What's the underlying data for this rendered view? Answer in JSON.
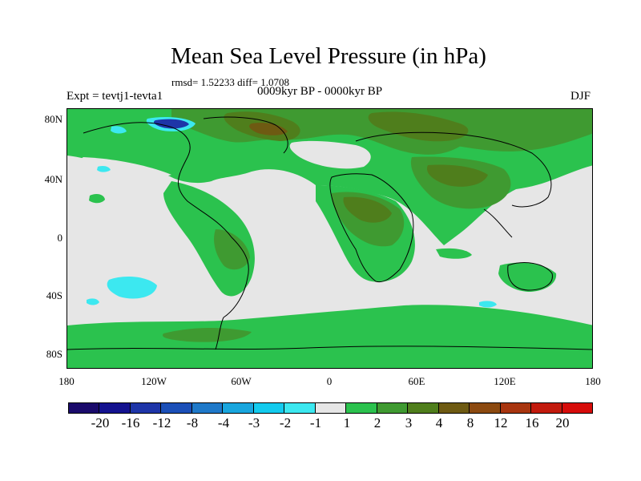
{
  "title": "Mean Sea Level Pressure (in hPa)",
  "stats": "rmsd= 1.52233 diff= 1.0708",
  "expt": "Expt = tevtj1-tevta1",
  "period": "0009kyr BP - 0000kyr BP",
  "season": "DJF",
  "lat_labels": [
    "80N",
    "40N",
    "0",
    "40S",
    "80S"
  ],
  "lon_labels": [
    "180",
    "120W",
    "60W",
    "0",
    "60E",
    "120E",
    "180"
  ],
  "colorbar": {
    "labels": [
      "-20",
      "-16",
      "-12",
      "-8",
      "-4",
      "-3",
      "-2",
      "-1",
      "1",
      "2",
      "3",
      "4",
      "8",
      "12",
      "16",
      "20"
    ],
    "colors": [
      "#1a0a6b",
      "#14128f",
      "#1e35a8",
      "#1b4fb8",
      "#1f79c9",
      "#19a6de",
      "#13cbee",
      "#3ce8f0",
      "#e6e6e6",
      "#2bc24e",
      "#3f9a31",
      "#4f7e1c",
      "#6e5a12",
      "#8c4a10",
      "#a8350f",
      "#c21a0d",
      "#d60c0a"
    ]
  },
  "colors": {
    "near_zero": "#e6e6e6",
    "pos_1_2": "#2bc24e",
    "pos_2_3": "#3f9a31",
    "pos_3_4": "#4f7e1c",
    "pos_4_8": "#6e5a12",
    "neg_2_1": "#3ce8f0",
    "neg_12_8": "#1e35a8"
  }
}
